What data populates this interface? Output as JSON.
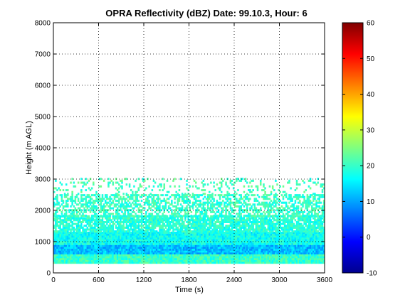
{
  "chart_data": {
    "type": "heatmap",
    "title": "OPRA Reflectivity (dBZ)  Date: 99.10.3, Hour: 6",
    "xlabel": "Time (s)",
    "ylabel": "Height (m AGL)",
    "xlim": [
      0,
      3600
    ],
    "ylim": [
      0,
      8000
    ],
    "xticks": [
      "0",
      "600",
      "1200",
      "1800",
      "2400",
      "3000",
      "3600"
    ],
    "yticks": [
      "0",
      "1000",
      "2000",
      "3000",
      "4000",
      "5000",
      "6000",
      "7000",
      "8000"
    ],
    "grid": true,
    "colorbar": {
      "range": [
        -10,
        60
      ],
      "ticks": [
        "-10",
        "0",
        "10",
        "20",
        "30",
        "40",
        "50",
        "60"
      ],
      "colormap": "jet"
    },
    "layers": [
      {
        "height_min": 300,
        "height_max": 600,
        "dbz": 20,
        "coverage": "continuous"
      },
      {
        "height_min": 600,
        "height_max": 900,
        "dbz": 12,
        "coverage": "continuous"
      },
      {
        "height_min": 900,
        "height_max": 1300,
        "dbz": 17,
        "coverage": "continuous"
      },
      {
        "height_min": 1300,
        "height_max": 1800,
        "dbz": 19,
        "coverage": "broken"
      },
      {
        "height_min": 1800,
        "height_max": 2500,
        "dbz": 20,
        "coverage": "scattered"
      },
      {
        "height_min": 2500,
        "height_max": 3000,
        "dbz": 21,
        "coverage": "sparse"
      }
    ]
  }
}
